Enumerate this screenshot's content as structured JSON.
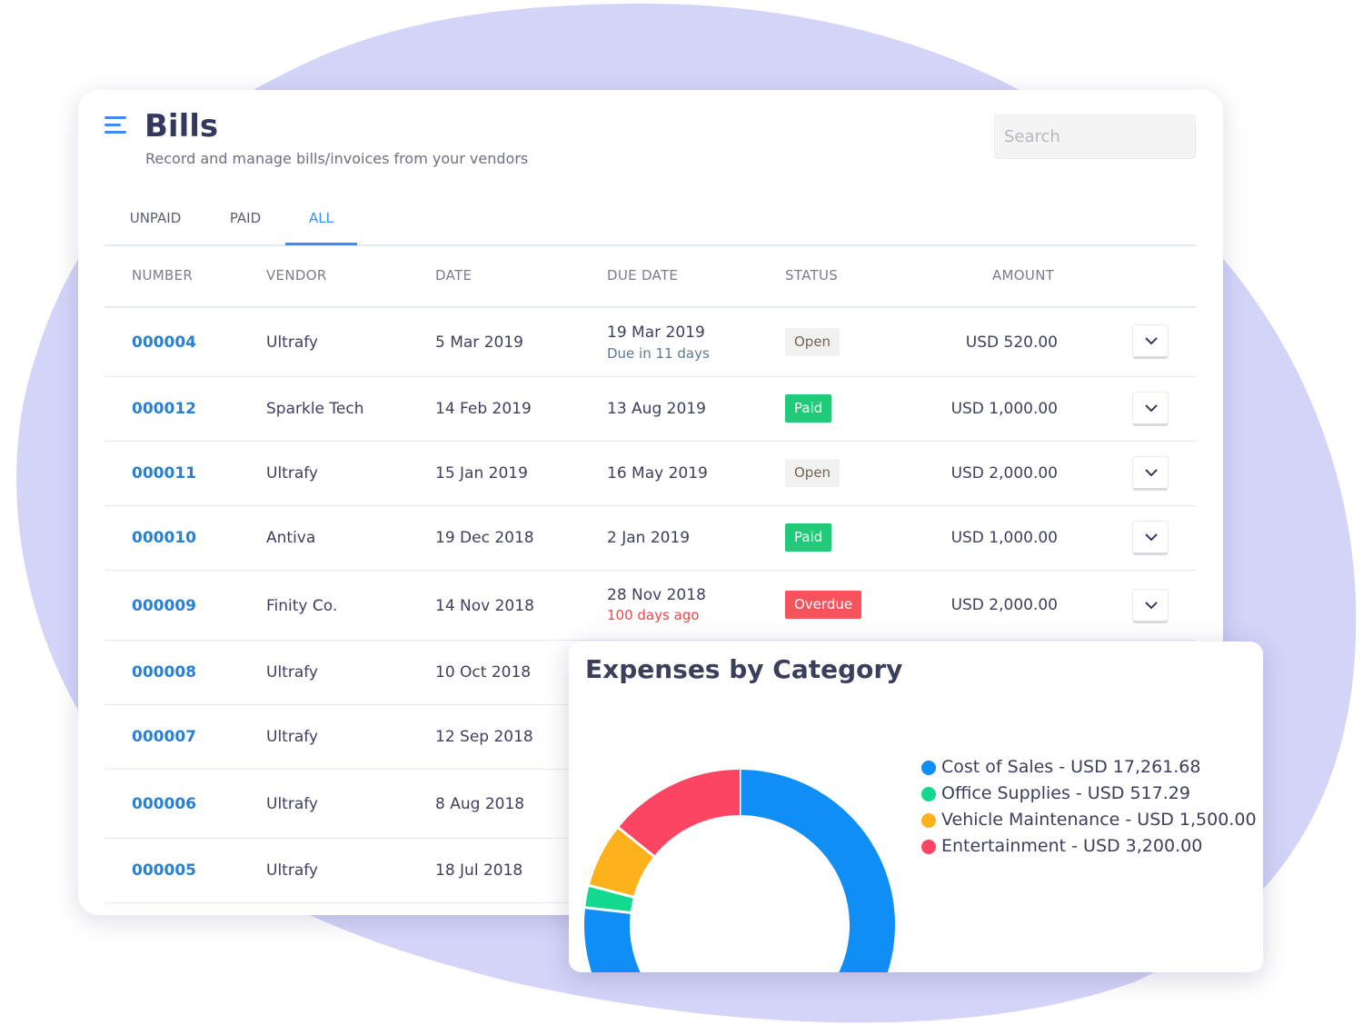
{
  "header": {
    "title": "Bills",
    "subtitle": "Record and manage bills/invoices from your vendors"
  },
  "search": {
    "placeholder": "Search",
    "value": ""
  },
  "tabs": [
    {
      "label": "UNPAID",
      "active": false
    },
    {
      "label": "PAID",
      "active": false
    },
    {
      "label": "ALL",
      "active": true
    }
  ],
  "table": {
    "columns": [
      "NUMBER",
      "VENDOR",
      "DATE",
      "DUE DATE",
      "STATUS",
      "AMOUNT"
    ],
    "rows": [
      {
        "number": "000004",
        "vendor": "Ultrafy",
        "date": "5 Mar 2019",
        "due_date": "19 Mar 2019",
        "due_note": "Due in 11 days",
        "status": "Open",
        "amount": "USD 520.00"
      },
      {
        "number": "000012",
        "vendor": "Sparkle Tech",
        "date": "14 Feb 2019",
        "due_date": "13 Aug 2019",
        "due_note": "",
        "status": "Paid",
        "amount": "USD 1,000.00"
      },
      {
        "number": "000011",
        "vendor": "Ultrafy",
        "date": "15 Jan 2019",
        "due_date": "16 May 2019",
        "due_note": "",
        "status": "Open",
        "amount": "USD 2,000.00"
      },
      {
        "number": "000010",
        "vendor": "Antiva",
        "date": "19 Dec 2018",
        "due_date": "2 Jan 2019",
        "due_note": "",
        "status": "Paid",
        "amount": "USD 1,000.00"
      },
      {
        "number": "000009",
        "vendor": "Finity Co.",
        "date": "14 Nov 2018",
        "due_date": "28 Nov 2018",
        "due_note": "100 days ago",
        "status": "Overdue",
        "amount": "USD 2,000.00"
      },
      {
        "number": "000008",
        "vendor": "Ultrafy",
        "date": "10 Oct 2018"
      },
      {
        "number": "000007",
        "vendor": "Ultrafy",
        "date": "12 Sep 2018"
      },
      {
        "number": "000006",
        "vendor": "Ultrafy",
        "date": "8 Aug 2018"
      },
      {
        "number": "000005",
        "vendor": "Ultrafy",
        "date": "18 Jul 2018"
      }
    ]
  },
  "chart_data": {
    "type": "pie",
    "title": "Expenses by Category",
    "series": [
      {
        "name": "Cost of Sales",
        "label": "Cost of Sales - USD 17,261.68",
        "value": 17261.68,
        "color": "#0f8ef5"
      },
      {
        "name": "Office Supplies",
        "label": "Office Supplies - USD 517.29",
        "value": 517.29,
        "color": "#12d98d"
      },
      {
        "name": "Vehicle Maintenance",
        "label": "Vehicle Maintenance - USD 1,500.00",
        "value": 1500.0,
        "color": "#fdb11c"
      },
      {
        "name": "Entertainment",
        "label": "Entertainment - USD 3,200.00",
        "value": 3200.0,
        "color": "#fc4563"
      }
    ],
    "legend": "right"
  },
  "colors": {
    "accent": "#3a8df5",
    "link": "#2a7fd1",
    "paid": "#22c979",
    "overdue": "#f5545d",
    "background_blob": "#d4d3f8"
  }
}
